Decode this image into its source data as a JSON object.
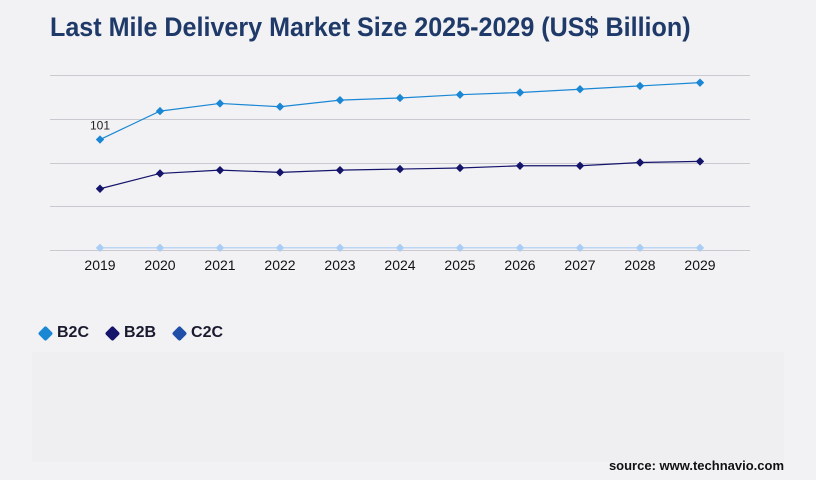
{
  "title": "Last Mile Delivery Market Size 2025-2029 (US$ Billion)",
  "source": "source: www.technavio.com",
  "chart_data": {
    "type": "line",
    "title": "Last Mile Delivery Market Size 2025-2029 (US$ Billion)",
    "xlabel": "",
    "ylabel": "",
    "categories": [
      "2019",
      "2020",
      "2021",
      "2022",
      "2023",
      "2024",
      "2025",
      "2026",
      "2027",
      "2028",
      "2029"
    ],
    "series": [
      {
        "name": "B2C",
        "color": "#1a87d4",
        "values": [
          101,
          127,
          134,
          131,
          137,
          139,
          142,
          144,
          147,
          150,
          153
        ]
      },
      {
        "name": "B2B",
        "color": "#15146b",
        "values": [
          56,
          70,
          73,
          71,
          73,
          74,
          75,
          77,
          77,
          80,
          81
        ]
      },
      {
        "name": "C2C",
        "color": "#a9cdf5",
        "values": [
          2,
          2,
          2,
          2,
          2,
          2,
          2,
          2,
          2,
          2,
          2
        ]
      }
    ],
    "data_labels": [
      {
        "series": "B2C",
        "index": 0,
        "text": "101"
      }
    ],
    "ylim": [
      0,
      160
    ],
    "grid": true,
    "legend": "bottom-left"
  },
  "legend": [
    {
      "label": "B2C",
      "color": "#1a87d4"
    },
    {
      "label": "B2B",
      "color": "#15146b"
    },
    {
      "label": "C2C",
      "color": "#1f4fa8"
    }
  ]
}
